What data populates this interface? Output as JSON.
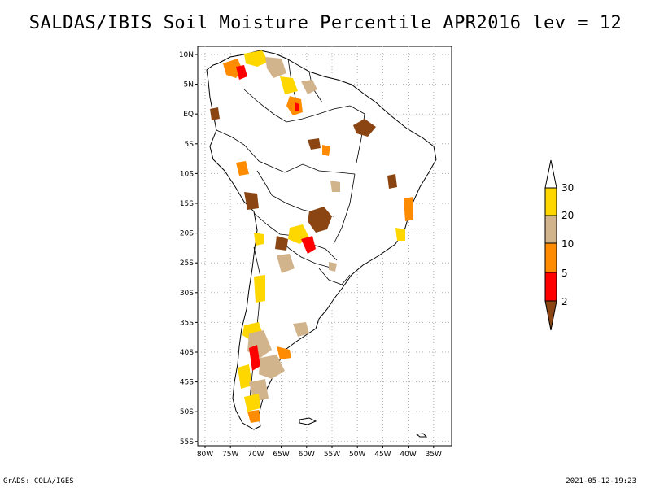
{
  "title": "SALDAS/IBIS Soil Moisture Percentile APR2016 lev = 12",
  "map": {
    "lat_ticks": [
      "10N",
      "5N",
      "EQ",
      "5S",
      "10S",
      "15S",
      "20S",
      "25S",
      "30S",
      "35S",
      "40S",
      "45S",
      "50S",
      "55S"
    ],
    "lon_ticks": [
      "80W",
      "75W",
      "70W",
      "65W",
      "60W",
      "55W",
      "50W",
      "45W",
      "40W",
      "35W"
    ]
  },
  "colorbar": {
    "levels": [
      "2",
      "5",
      "10",
      "20",
      "30"
    ],
    "colors": {
      "below_2": "#8B4513",
      "2_5": "#FF0000",
      "5_10": "#FF8C00",
      "10_20": "#D2B48C",
      "20_30": "#FFD700",
      "above_30": "#FFFFFF"
    }
  },
  "footer": {
    "left": "GrADS: COLA/IGES",
    "right": "2021-05-12-19:23"
  }
}
